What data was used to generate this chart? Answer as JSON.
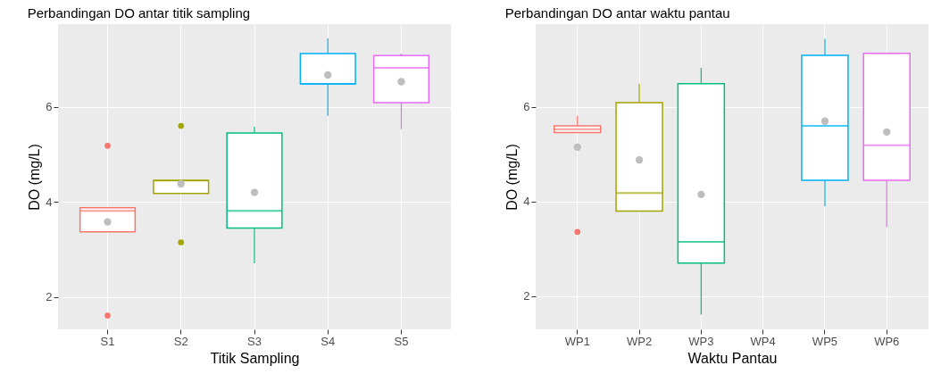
{
  "chart_data": [
    {
      "type": "box",
      "title": "Perbandingan DO antar titik sampling",
      "xlabel": "Titik Sampling",
      "ylabel": "DO (mg/L)",
      "categories": [
        "S1",
        "S2",
        "S3",
        "S4",
        "S5"
      ],
      "colors": [
        "#f8766d",
        "#a3a500",
        "#00bf7d",
        "#00b0f6",
        "#e76bf3"
      ],
      "boxes": [
        {
          "low": 3.37,
          "q1": 3.37,
          "median": 3.81,
          "q3": 3.88,
          "high": 3.88,
          "mean": 3.58,
          "outliers": [
            5.18,
            1.61
          ]
        },
        {
          "low": 4.18,
          "q1": 4.18,
          "median": 4.45,
          "q3": 4.45,
          "high": 4.45,
          "mean": 4.38,
          "outliers": [
            5.6,
            3.15
          ]
        },
        {
          "low": 2.71,
          "q1": 3.45,
          "median": 3.81,
          "q3": 5.45,
          "high": 5.58,
          "mean": 4.2
        },
        {
          "low": 5.81,
          "q1": 6.48,
          "median": 6.48,
          "q3": 7.12,
          "high": 7.44,
          "mean": 6.67
        },
        {
          "low": 5.53,
          "q1": 6.09,
          "median": 6.82,
          "q3": 7.08,
          "high": 7.12,
          "mean": 6.53
        }
      ],
      "ylim": [
        1.32,
        7.74
      ],
      "yticks": [
        2,
        4,
        6
      ],
      "grid": true
    },
    {
      "type": "box",
      "title": "Perbandingan DO antar waktu pantau",
      "xlabel": "Waktu Pantau",
      "ylabel": "DO (mg/L)",
      "categories": [
        "WP1",
        "WP2",
        "WP3",
        "WP4",
        "WP5",
        "WP6"
      ],
      "colors": [
        "#f8766d",
        "#a3a500",
        "#00bf7d",
        null,
        "#00b0f6",
        "#e76bf3"
      ],
      "boxes": [
        {
          "low": 5.46,
          "q1": 5.46,
          "median": 5.53,
          "q3": 5.6,
          "high": 5.81,
          "mean": 5.15,
          "outliers": [
            3.36
          ]
        },
        {
          "low": 3.8,
          "q1": 3.8,
          "median": 4.18,
          "q3": 6.09,
          "high": 6.49,
          "mean": 4.88
        },
        {
          "low": 1.61,
          "q1": 2.7,
          "median": 3.15,
          "q3": 6.49,
          "high": 6.82,
          "mean": 4.15
        },
        null,
        {
          "low": 3.9,
          "q1": 4.45,
          "median": 5.6,
          "q3": 7.09,
          "high": 7.44,
          "mean": 5.7
        },
        {
          "low": 3.46,
          "q1": 4.45,
          "median": 5.19,
          "q3": 7.13,
          "high": 7.13,
          "mean": 5.47
        }
      ],
      "ylim": [
        1.3,
        7.75
      ],
      "yticks": [
        2,
        4,
        6
      ],
      "grid": true
    }
  ]
}
